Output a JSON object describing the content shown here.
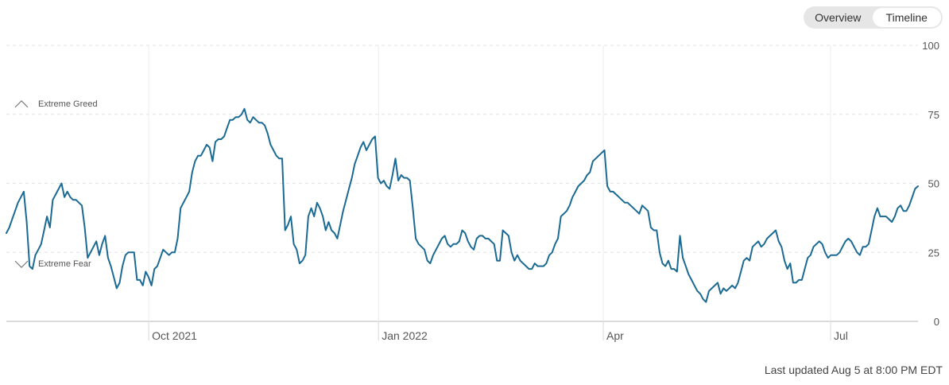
{
  "controls": {
    "overview_label": "Overview",
    "timeline_label": "Timeline",
    "active": "Timeline"
  },
  "footer": {
    "updated_text": "Last updated Aug 5 at 8:00 PM EDT"
  },
  "colors": {
    "line": "#1a6a93",
    "grid": "#e2e2e2",
    "axis": "#cfcfcf",
    "text": "#555555"
  },
  "chart_data": {
    "type": "line",
    "title": "",
    "xlabel": "",
    "ylabel": "",
    "ylim": [
      0,
      100
    ],
    "y_ticks": [
      0,
      25,
      50,
      75,
      100
    ],
    "grid": true,
    "x_ticks": [
      "Oct 2021",
      "Jan 2022",
      "Apr",
      "Jul"
    ],
    "annotations": [
      {
        "label": "Extreme Greed",
        "y": 79,
        "icon": "chevron-up-icon"
      },
      {
        "label": "Extreme Fear",
        "y": 21,
        "icon": "chevron-down-icon"
      }
    ],
    "series": [
      {
        "name": "",
        "x_range": [
          "2021-08-05",
          "2022-08-05"
        ],
        "values": [
          32,
          34,
          37,
          40,
          43,
          45,
          47,
          36,
          20,
          19,
          24,
          26,
          28,
          33,
          38,
          34,
          44,
          46,
          48,
          50,
          45,
          47,
          45,
          44,
          44,
          43,
          42,
          34,
          23,
          25,
          27,
          29,
          24,
          28,
          31,
          23,
          20,
          16,
          12,
          14,
          20,
          24,
          25,
          25,
          25,
          15,
          15,
          13,
          18,
          16,
          13,
          19,
          20,
          23,
          26,
          25,
          24,
          25,
          25,
          30,
          41,
          43,
          45,
          47,
          54,
          58,
          60,
          60,
          62,
          64,
          63,
          58,
          65,
          66,
          66,
          67,
          70,
          73,
          73,
          74,
          74,
          75,
          77,
          73,
          72,
          74,
          73,
          72,
          72,
          71,
          68,
          64,
          62,
          60,
          59,
          59,
          33,
          35,
          38,
          28,
          26,
          21,
          22,
          24,
          38,
          41,
          38,
          43,
          41,
          38,
          33,
          36,
          33,
          32,
          30,
          35,
          40,
          44,
          48,
          52,
          57,
          60,
          63,
          65,
          62,
          64,
          66,
          67,
          52,
          50,
          51,
          49,
          48,
          53,
          59,
          51,
          53,
          52,
          52,
          51,
          41,
          30,
          28,
          27,
          26,
          22,
          21,
          24,
          26,
          28,
          30,
          31,
          28,
          27,
          28,
          28,
          29,
          33,
          32,
          29,
          27,
          26,
          30,
          31,
          31,
          30,
          30,
          29,
          28,
          22,
          22,
          33,
          32,
          31,
          25,
          22,
          24,
          22,
          21,
          20,
          19,
          19,
          21,
          20,
          20,
          20,
          21,
          24,
          25,
          28,
          30,
          38,
          39,
          40,
          42,
          45,
          47,
          49,
          50,
          51,
          53,
          54,
          58,
          59,
          60,
          61,
          62,
          49,
          47,
          47,
          46,
          45,
          44,
          43,
          43,
          42,
          41,
          40,
          39,
          42,
          41,
          40,
          34,
          33,
          33,
          25,
          21,
          20,
          22,
          19,
          19,
          18,
          31,
          23,
          20,
          17,
          15,
          13,
          11,
          10,
          8,
          7,
          11,
          12,
          13,
          14,
          10,
          12,
          11,
          12,
          13,
          12,
          14,
          18,
          22,
          23,
          22,
          27,
          28,
          29,
          27,
          28,
          30,
          31,
          32,
          33,
          29,
          27,
          22,
          19,
          21,
          14,
          14,
          15,
          15,
          19,
          23,
          24,
          27,
          28,
          29,
          28,
          25,
          23,
          24,
          24,
          24,
          25,
          27,
          29,
          30,
          29,
          27,
          25,
          24,
          27,
          27,
          28,
          33,
          38,
          41,
          38,
          38,
          38,
          37,
          36,
          38,
          41,
          42,
          40,
          40,
          42,
          45,
          48,
          49
        ]
      }
    ]
  }
}
